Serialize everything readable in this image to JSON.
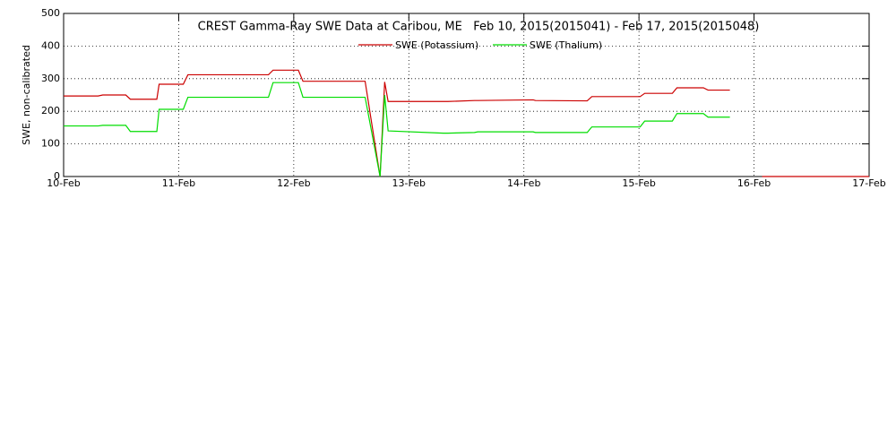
{
  "chart_data": {
    "type": "line",
    "title": "CREST Gamma-Ray SWE Data at Caribou, ME   Feb 10, 2015(2015041) - Feb 17, 2015(2015048)",
    "y_label": "SWE, non-calibrated",
    "x": [
      10.0,
      10.3,
      10.34,
      10.54,
      10.58,
      10.81,
      10.83,
      11.04,
      11.08,
      11.78,
      11.82,
      12.04,
      12.08,
      12.62,
      12.75,
      12.79,
      12.82,
      13.3,
      13.34,
      13.57,
      13.6,
      14.08,
      14.1,
      14.55,
      14.59,
      15.01,
      15.05,
      15.29,
      15.33,
      15.56,
      15.6,
      15.79,
      15.9,
      16.07,
      17.0
    ],
    "series": [
      {
        "name": "SWE (Potassium)",
        "color": "#cc0000",
        "values": [
          247,
          247,
          250,
          250,
          237,
          237,
          283,
          283,
          312,
          312,
          326,
          326,
          292,
          292,
          0,
          290,
          230,
          230,
          230,
          233,
          233,
          235,
          233,
          232,
          245,
          245,
          255,
          255,
          272,
          272,
          265,
          265,
          null,
          0,
          0
        ]
      },
      {
        "name": "SWE (Thalium)",
        "color": "#00dd00",
        "values": [
          155,
          155,
          157,
          157,
          138,
          138,
          206,
          206,
          243,
          243,
          288,
          288,
          243,
          243,
          0,
          250,
          140,
          133,
          133,
          135,
          137,
          137,
          135,
          135,
          152,
          152,
          170,
          170,
          193,
          193,
          182,
          182,
          null,
          null,
          null
        ]
      }
    ],
    "xlim": [
      10,
      17
    ],
    "xticks": [
      {
        "value": 10,
        "label": "10-Feb"
      },
      {
        "value": 11,
        "label": "11-Feb"
      },
      {
        "value": 12,
        "label": "12-Feb"
      },
      {
        "value": 13,
        "label": "13-Feb"
      },
      {
        "value": 14,
        "label": "14-Feb"
      },
      {
        "value": 15,
        "label": "15-Feb"
      },
      {
        "value": 16,
        "label": "16-Feb"
      },
      {
        "value": 17,
        "label": "17-Feb"
      }
    ],
    "ylim": [
      0,
      500
    ],
    "yticks": [
      0,
      100,
      200,
      300,
      400,
      500
    ],
    "grid": true,
    "legend": "top"
  }
}
